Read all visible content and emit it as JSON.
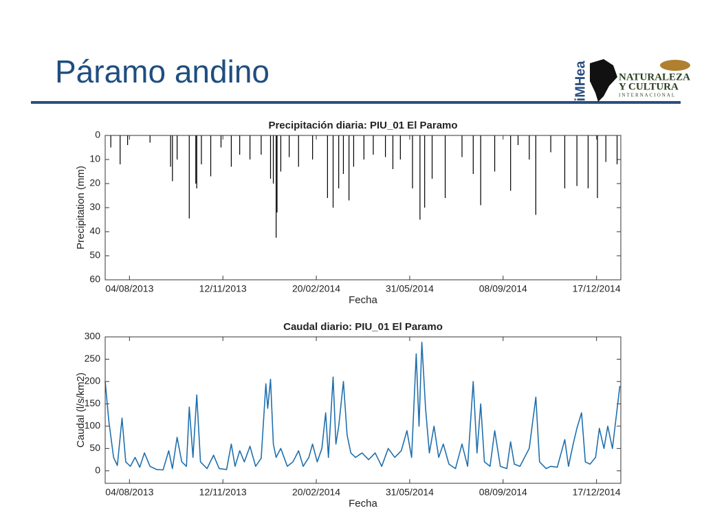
{
  "header": {
    "title": "Páramo andino",
    "logo_left": "iMHea",
    "logo_right_line1": "NATURALEZA",
    "logo_right_line2": "Y CULTURA",
    "logo_right_line3": "INTERNACIONAL"
  },
  "chart_data": [
    {
      "type": "bar",
      "title": "Precipitación diaria: PIU_01 El Paramo",
      "x_label": "Fecha",
      "y_label": "Precipitation (mm)",
      "color": "#000000",
      "y_inverted": true,
      "grid": false,
      "xlim": [
        "09/07/2013",
        "12/01/2015"
      ],
      "xticks": [
        "04/08/2013",
        "12/11/2013",
        "20/02/2014",
        "31/05/2014",
        "08/09/2014",
        "17/12/2014"
      ],
      "ylim": [
        0,
        60
      ],
      "yticks": [
        0,
        10,
        20,
        30,
        40,
        50,
        60
      ],
      "x": [
        "15/07/2013",
        "25/07/2013",
        "02/08/2013",
        "26/08/2013",
        "17/09/2013",
        "19/09/2013",
        "24/09/2013",
        "07/10/2013",
        "14/10/2013",
        "15/10/2013",
        "20/10/2013",
        "30/10/2013",
        "10/11/2013",
        "21/11/2013",
        "30/11/2013",
        "11/12/2013",
        "23/12/2013",
        "02/01/2014",
        "05/01/2014",
        "08/01/2014",
        "09/01/2014",
        "13/01/2014",
        "22/01/2014",
        "01/02/2014",
        "16/02/2014",
        "04/03/2014",
        "10/03/2014",
        "16/03/2014",
        "21/03/2014",
        "27/03/2014",
        "01/04/2014",
        "12/04/2014",
        "22/04/2014",
        "05/05/2014",
        "13/05/2014",
        "21/05/2014",
        "03/06/2014",
        "11/06/2014",
        "16/06/2014",
        "24/06/2014",
        "08/07/2014",
        "26/07/2014",
        "07/08/2014",
        "15/08/2014",
        "30/08/2014",
        "16/09/2014",
        "24/09/2014",
        "06/10/2014",
        "13/10/2014",
        "29/10/2014",
        "13/11/2014",
        "26/11/2014",
        "08/12/2014",
        "18/12/2014",
        "27/12/2014",
        "08/01/2015"
      ],
      "values": [
        5,
        12,
        4,
        3,
        13,
        19,
        10,
        34.5,
        20,
        22,
        12,
        17,
        5,
        13,
        8,
        10,
        8,
        18,
        20,
        42.5,
        32,
        15,
        9,
        13,
        10,
        26,
        30,
        22,
        16,
        27,
        13,
        10,
        8,
        9,
        14,
        10,
        22,
        35,
        30,
        18,
        26,
        9,
        16,
        29,
        15,
        23,
        4,
        10,
        33,
        7,
        22,
        21,
        22,
        26,
        11,
        12
      ]
    },
    {
      "type": "line",
      "title": "Caudal diario: PIU_01 El Paramo",
      "x_label": "Fecha",
      "y_label": "Caudal (l/s/km2)",
      "color": "#1f6fad",
      "grid": false,
      "xlim": [
        "09/07/2013",
        "12/01/2015"
      ],
      "xticks": [
        "04/08/2013",
        "12/11/2013",
        "20/02/2014",
        "31/05/2014",
        "08/09/2014",
        "17/12/2014"
      ],
      "ylim": [
        -28,
        300
      ],
      "yticks": [
        0,
        50,
        100,
        150,
        200,
        250,
        300
      ],
      "x": [
        "09/07/2013",
        "13/07/2013",
        "18/07/2013",
        "22/07/2013",
        "27/07/2013",
        "31/07/2013",
        "05/08/2013",
        "10/08/2013",
        "15/08/2013",
        "20/08/2013",
        "26/08/2013",
        "02/09/2013",
        "09/09/2013",
        "15/09/2013",
        "19/09/2013",
        "24/09/2013",
        "29/09/2013",
        "04/10/2013",
        "07/10/2013",
        "11/10/2013",
        "15/10/2013",
        "19/10/2013",
        "26/10/2013",
        "02/11/2013",
        "08/11/2013",
        "16/11/2013",
        "21/11/2013",
        "25/11/2013",
        "30/11/2013",
        "05/12/2013",
        "11/12/2013",
        "17/12/2013",
        "23/12/2013",
        "28/12/2013",
        "30/12/2013",
        "02/01/2014",
        "05/01/2014",
        "08/01/2014",
        "13/01/2014",
        "20/01/2014",
        "26/01/2014",
        "01/02/2014",
        "06/02/2014",
        "12/02/2014",
        "16/02/2014",
        "21/02/2014",
        "26/02/2014",
        "02/03/2014",
        "05/03/2014",
        "10/03/2014",
        "13/03/2014",
        "16/03/2014",
        "21/03/2014",
        "25/03/2014",
        "29/03/2014",
        "03/04/2014",
        "10/04/2014",
        "17/04/2014",
        "24/04/2014",
        "01/05/2014",
        "08/05/2014",
        "15/05/2014",
        "22/05/2014",
        "28/05/2014",
        "02/06/2014",
        "07/06/2014",
        "10/06/2014",
        "13/06/2014",
        "17/06/2014",
        "21/06/2014",
        "26/06/2014",
        "01/07/2014",
        "06/07/2014",
        "12/07/2014",
        "19/07/2014",
        "26/07/2014",
        "01/08/2014",
        "07/08/2014",
        "11/08/2014",
        "15/08/2014",
        "19/08/2014",
        "25/08/2014",
        "30/08/2014",
        "05/09/2014",
        "12/09/2014",
        "16/09/2014",
        "20/09/2014",
        "26/09/2014",
        "06/10/2014",
        "13/10/2014",
        "17/10/2014",
        "24/10/2014",
        "29/10/2014",
        "05/11/2014",
        "13/11/2014",
        "17/11/2014",
        "22/11/2014",
        "26/11/2014",
        "01/12/2014",
        "05/12/2014",
        "10/12/2014",
        "16/12/2014",
        "20/12/2014",
        "25/12/2014",
        "29/12/2014",
        "03/01/2015",
        "11/01/2015"
      ],
      "values": [
        200,
        110,
        30,
        12,
        118,
        20,
        10,
        30,
        8,
        40,
        10,
        3,
        2,
        45,
        5,
        75,
        20,
        10,
        143,
        30,
        170,
        20,
        5,
        35,
        5,
        3,
        60,
        10,
        45,
        20,
        55,
        10,
        28,
        195,
        140,
        205,
        60,
        30,
        50,
        10,
        20,
        45,
        10,
        30,
        60,
        20,
        50,
        130,
        30,
        210,
        60,
        100,
        200,
        80,
        40,
        30,
        40,
        25,
        40,
        10,
        50,
        30,
        45,
        90,
        30,
        262,
        100,
        288,
        140,
        40,
        100,
        30,
        60,
        15,
        5,
        60,
        10,
        200,
        40,
        150,
        20,
        10,
        90,
        10,
        5,
        65,
        15,
        10,
        50,
        165,
        20,
        5,
        10,
        8,
        70,
        10,
        60,
        95,
        130,
        20,
        15,
        30,
        95,
        50,
        100,
        50,
        190
      ]
    }
  ]
}
